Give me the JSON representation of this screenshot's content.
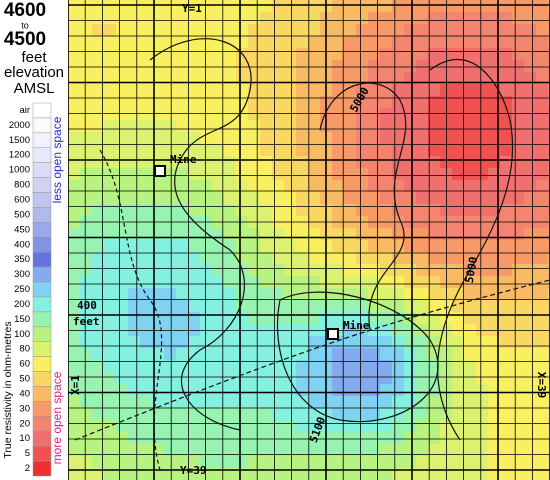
{
  "header": {
    "top": "4600",
    "to": "to",
    "bottom": "4500",
    "unit": "feet",
    "word": "elevation",
    "datum": "AMSL"
  },
  "legend": {
    "axis_label": "True resistivity in ohm-metres",
    "less": "less open space",
    "more": "more open space",
    "items": [
      {
        "label": "air",
        "color": "#ffffff"
      },
      {
        "label": "2000",
        "color": "#fbfbff"
      },
      {
        "label": "1500",
        "color": "#f2f2ff"
      },
      {
        "label": "1200",
        "color": "#e8e8fb"
      },
      {
        "label": "1000",
        "color": "#dcdcf6"
      },
      {
        "label": "800",
        "color": "#d0d2f2"
      },
      {
        "label": "600",
        "color": "#c2c6ef"
      },
      {
        "label": "500",
        "color": "#b2baec"
      },
      {
        "label": "450",
        "color": "#9ca8e8"
      },
      {
        "label": "400",
        "color": "#8492e4"
      },
      {
        "label": "350",
        "color": "#6474dc"
      },
      {
        "label": "300",
        "color": "#84aaf0"
      },
      {
        "label": "250",
        "color": "#80d2f2"
      },
      {
        "label": "200",
        "color": "#84f0e0"
      },
      {
        "label": "150",
        "color": "#98f2b0"
      },
      {
        "label": "100",
        "color": "#b8f280"
      },
      {
        "label": "80",
        "color": "#daf270"
      },
      {
        "label": "60",
        "color": "#f8f060"
      },
      {
        "label": "50",
        "color": "#f8d862"
      },
      {
        "label": "40",
        "color": "#f8ba62"
      },
      {
        "label": "30",
        "color": "#f89a68"
      },
      {
        "label": "20",
        "color": "#f28470"
      },
      {
        "label": "10",
        "color": "#f07070"
      },
      {
        "label": "5",
        "color": "#f05252"
      },
      {
        "label": "2",
        "color": "#f03030"
      }
    ]
  },
  "map": {
    "mine_1": "Mine",
    "mine_2": "Mine",
    "scale": "400",
    "scale_unit": "feet",
    "y_top": "Y=1",
    "y_bottom": "Y=39",
    "x_left": "X=1",
    "x_right": "X=39",
    "contour_1": "5000",
    "contour_2": "5000",
    "contour_3": "5100"
  }
}
